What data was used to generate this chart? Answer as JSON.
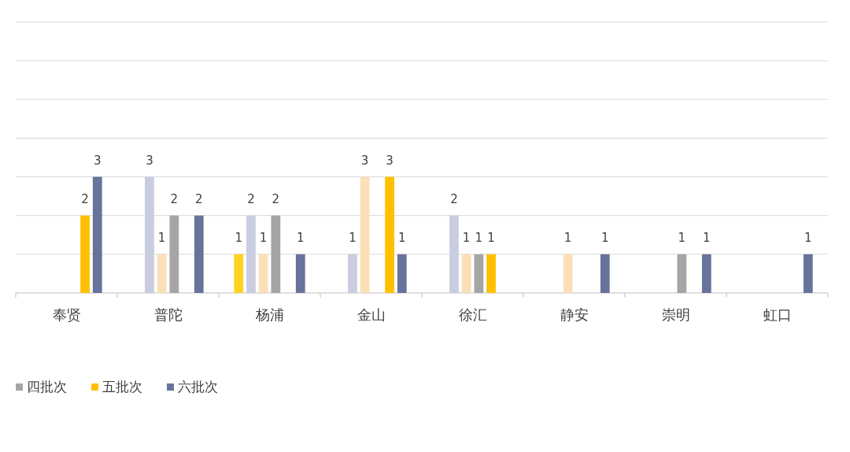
{
  "chart_data": {
    "type": "bar",
    "categories": [
      "奉贤",
      "普陀",
      "杨浦",
      "金山",
      "徐汇",
      "静安",
      "崇明",
      "虹口"
    ],
    "series": [
      {
        "color": "#ffd21f",
        "values": [
          null,
          null,
          1,
          null,
          null,
          null,
          null,
          null
        ]
      },
      {
        "color": "#c9cddf",
        "values": [
          null,
          3,
          2,
          1,
          2,
          null,
          null,
          null
        ]
      },
      {
        "color": "#fbdfb6",
        "values": [
          null,
          1,
          1,
          3,
          1,
          1,
          null,
          null
        ]
      },
      {
        "name": "四批次",
        "color": "#a5a5a5",
        "values": [
          null,
          2,
          2,
          null,
          1,
          null,
          1,
          null
        ]
      },
      {
        "name": "五批次",
        "color": "#ffc000",
        "values": [
          2,
          null,
          null,
          3,
          1,
          null,
          null,
          null
        ]
      },
      {
        "name": "六批次",
        "color": "#68739b",
        "values": [
          3,
          2,
          1,
          1,
          null,
          1,
          1,
          1
        ]
      }
    ],
    "ylim": [
      0,
      7
    ],
    "yticks": [
      {
        "value": 0,
        "label": null
      },
      {
        "value": 1,
        "label": null
      },
      {
        "value": 2,
        "label": null
      },
      {
        "value": 3,
        "label": null
      },
      {
        "value": 4,
        "label": null
      },
      {
        "value": 5,
        "label": null
      },
      {
        "value": 6,
        "label": null
      },
      {
        "value": 7,
        "label": null
      }
    ],
    "tick_labels": "x",
    "grid": "y",
    "data_labels": true,
    "legend": "bottom left"
  }
}
